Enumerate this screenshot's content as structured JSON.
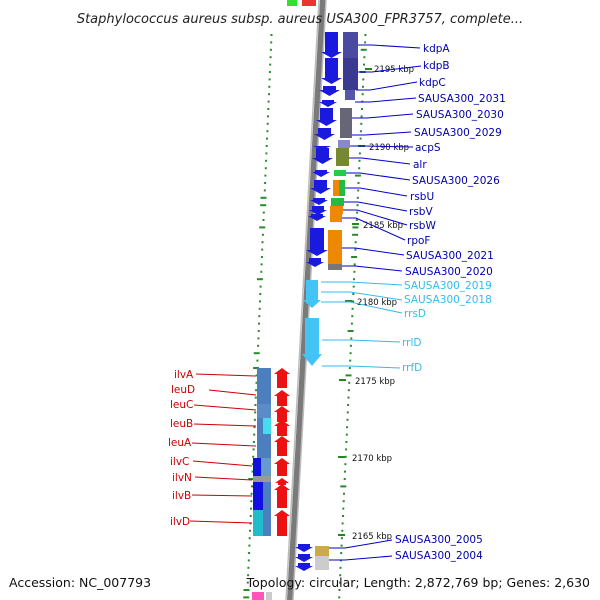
{
  "title": "Staphylococcus aureus subsp. aureus USA300_FPR3757, complete...",
  "accession": "Accession: NC_007793",
  "topology": "Topology: circular; Length: 2,872,769 bp; Genes: 2,630",
  "ticks": [
    "2195 kbp",
    "2190 kbp",
    "2185 kbp",
    "2180 kbp",
    "2175 kbp",
    "2170 kbp",
    "2165 kbp"
  ],
  "colors": {
    "blue": "#1010e8",
    "navy": "#0000aa",
    "red": "#cc0000",
    "cyan": "#33bbee",
    "rna_arrow": "#44c4f4",
    "red_arrow": "#ee1111"
  },
  "right_genes": [
    {
      "label": "kdpA",
      "color": "navy"
    },
    {
      "label": "kdpB",
      "color": "navy"
    },
    {
      "label": "kdpC",
      "color": "navy"
    },
    {
      "label": "SAUSA300_2031",
      "color": "navy"
    },
    {
      "label": "SAUSA300_2030",
      "color": "navy"
    },
    {
      "label": "SAUSA300_2029",
      "color": "navy"
    },
    {
      "label": "acpS",
      "color": "navy"
    },
    {
      "label": "alr",
      "color": "navy"
    },
    {
      "label": "SAUSA300_2026",
      "color": "navy"
    },
    {
      "label": "rsbU",
      "color": "navy"
    },
    {
      "label": "rsbV",
      "color": "navy"
    },
    {
      "label": "rsbW",
      "color": "navy"
    },
    {
      "label": "rpoF",
      "color": "navy"
    },
    {
      "label": "SAUSA300_2021",
      "color": "navy"
    },
    {
      "label": "SAUSA300_2020",
      "color": "navy"
    },
    {
      "label": "SAUSA300_2019",
      "color": "cyan"
    },
    {
      "label": "SAUSA300_2018",
      "color": "cyan"
    },
    {
      "label": "rrsD",
      "color": "cyan"
    },
    {
      "label": "rrlD",
      "color": "cyan"
    },
    {
      "label": "rrfD",
      "color": "cyan"
    },
    {
      "label": "SAUSA300_2005",
      "color": "navy"
    },
    {
      "label": "SAUSA300_2004",
      "color": "navy"
    }
  ],
  "left_genes": [
    {
      "label": "ilvA"
    },
    {
      "label": "leuD"
    },
    {
      "label": "leuC"
    },
    {
      "label": "leuB"
    },
    {
      "label": "leuA"
    },
    {
      "label": "ilvC"
    },
    {
      "label": "ilvN"
    },
    {
      "label": "ilvB"
    },
    {
      "label": "ilvD"
    }
  ]
}
